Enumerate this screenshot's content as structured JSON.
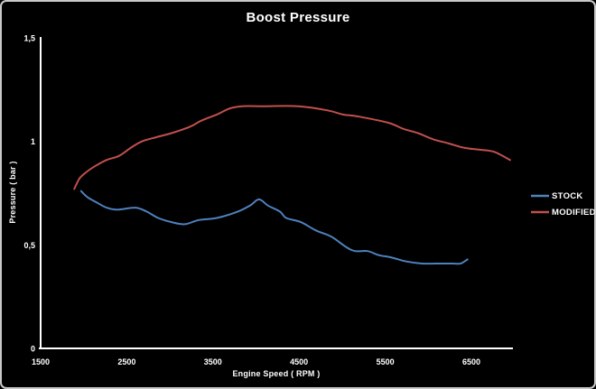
{
  "chart_data": {
    "type": "line",
    "title": "Boost Pressure",
    "xlabel": "Engine Speed ( RPM )",
    "ylabel": "Pressure ( bar )",
    "xlim": [
      1500,
      6972
    ],
    "ylim": [
      0,
      1.5
    ],
    "grid": false,
    "legend_position": "right",
    "background_color": "#000000",
    "axis_color": "#ffffff",
    "text_color": "#ffffff",
    "border_color": "#c9c9c9",
    "x_ticks": [
      {
        "label": "1500",
        "value": 1500
      },
      {
        "label": "2500",
        "value": 2500
      },
      {
        "label": "3500",
        "value": 3500
      },
      {
        "label": "4500",
        "value": 4500
      },
      {
        "label": "5500",
        "value": 5500
      },
      {
        "label": "6500",
        "value": 6500
      }
    ],
    "y_ticks": [
      {
        "label": "1,5",
        "value": 1.5
      },
      {
        "label": "1",
        "value": 1.0
      },
      {
        "label": "0,5",
        "value": 0.5
      },
      {
        "label": "0",
        "value": 0.0
      }
    ],
    "series": [
      {
        "name": "STOCK",
        "color": "#4F81BD",
        "units": [
          "RPM",
          "bar"
        ],
        "points": [
          [
            1970,
            0.76
          ],
          [
            2045,
            0.73
          ],
          [
            2130,
            0.71
          ],
          [
            2265,
            0.68
          ],
          [
            2390,
            0.67
          ],
          [
            2600,
            0.68
          ],
          [
            2735,
            0.66
          ],
          [
            2865,
            0.63
          ],
          [
            3020,
            0.61
          ],
          [
            3175,
            0.6
          ],
          [
            3335,
            0.62
          ],
          [
            3545,
            0.63
          ],
          [
            3785,
            0.66
          ],
          [
            3930,
            0.69
          ],
          [
            4035,
            0.72
          ],
          [
            4140,
            0.69
          ],
          [
            4280,
            0.66
          ],
          [
            4350,
            0.63
          ],
          [
            4520,
            0.61
          ],
          [
            4695,
            0.57
          ],
          [
            4875,
            0.54
          ],
          [
            5045,
            0.49
          ],
          [
            5150,
            0.47
          ],
          [
            5295,
            0.47
          ],
          [
            5430,
            0.45
          ],
          [
            5565,
            0.44
          ],
          [
            5745,
            0.42
          ],
          [
            5925,
            0.41
          ],
          [
            6090,
            0.41
          ],
          [
            6270,
            0.41
          ],
          [
            6375,
            0.41
          ],
          [
            6455,
            0.43
          ]
        ]
      },
      {
        "name": "MODIFIED",
        "color": "#C0504D",
        "units": [
          "RPM",
          "bar"
        ],
        "points": [
          [
            1890,
            0.77
          ],
          [
            1950,
            0.82
          ],
          [
            2025,
            0.85
          ],
          [
            2130,
            0.88
          ],
          [
            2265,
            0.91
          ],
          [
            2410,
            0.93
          ],
          [
            2550,
            0.97
          ],
          [
            2675,
            1.0
          ],
          [
            2840,
            1.02
          ],
          [
            3020,
            1.04
          ],
          [
            3230,
            1.07
          ],
          [
            3365,
            1.1
          ],
          [
            3545,
            1.13
          ],
          [
            3700,
            1.16
          ],
          [
            3840,
            1.17
          ],
          [
            4100,
            1.17
          ],
          [
            4490,
            1.17
          ],
          [
            4830,
            1.15
          ],
          [
            5010,
            1.13
          ],
          [
            5190,
            1.12
          ],
          [
            5535,
            1.09
          ],
          [
            5715,
            1.06
          ],
          [
            5880,
            1.04
          ],
          [
            6060,
            1.01
          ],
          [
            6240,
            0.99
          ],
          [
            6405,
            0.97
          ],
          [
            6585,
            0.96
          ],
          [
            6760,
            0.95
          ],
          [
            6950,
            0.91
          ]
        ]
      }
    ]
  }
}
